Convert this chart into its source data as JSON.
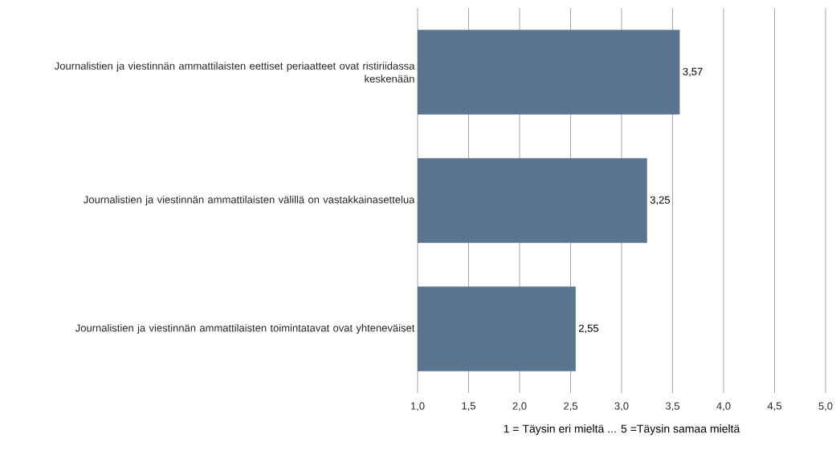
{
  "chart_data": {
    "type": "bar",
    "orientation": "horizontal",
    "categories": [
      "Journalistien ja viestinnän ammattilaisten eettiset periaatteet ovat ristiriidassa keskenään",
      "Journalistien ja viestinnän ammattilaisten välillä on vastakkainasettelua",
      "Journalistien ja viestinnän ammattilaisten toimintatavat ovat yhteneväiset"
    ],
    "values": [
      3.57,
      3.25,
      2.55
    ],
    "value_labels": [
      "3,57",
      "3,25",
      "2,55"
    ],
    "color": "#5b7590",
    "xlim": [
      1,
      5
    ],
    "xticks": [
      {
        "value": 1,
        "label": "1,0"
      },
      {
        "value": 1.5,
        "label": "1,5"
      },
      {
        "value": 2,
        "label": "2,0"
      },
      {
        "value": 2.5,
        "label": "2,5"
      },
      {
        "value": 3,
        "label": "3,0"
      },
      {
        "value": 3.5,
        "label": "3,5"
      },
      {
        "value": 4,
        "label": "4,0"
      },
      {
        "value": 4.5,
        "label": "4,5"
      },
      {
        "value": 5,
        "label": "5,0"
      }
    ],
    "xlabel": "1 = Täysin eri mieltä ... 5 =Täysin samaa mieltä",
    "grid": "x"
  }
}
